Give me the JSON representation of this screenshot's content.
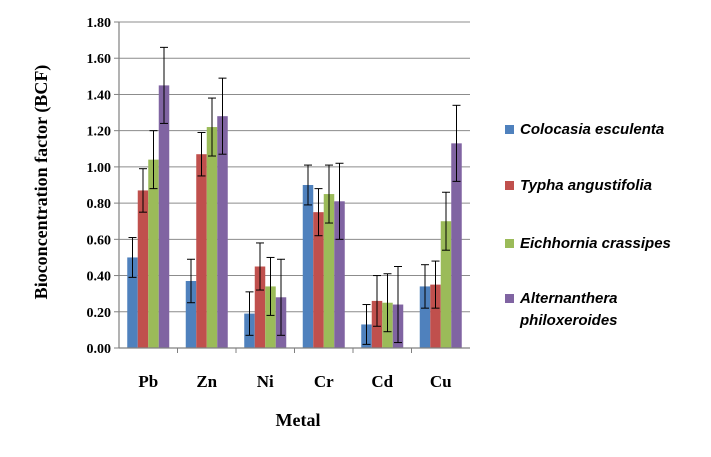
{
  "chart_data": {
    "type": "bar",
    "title": "",
    "xlabel": "Metal",
    "ylabel": "Bioconcentration factor (BCF)",
    "ylim": [
      0,
      1.8
    ],
    "ytick_step": 0.2,
    "yticks": [
      "0.00",
      "0.20",
      "0.40",
      "0.60",
      "0.80",
      "1.00",
      "1.20",
      "1.40",
      "1.60",
      "1.80"
    ],
    "grid": true,
    "legend_position": "right",
    "categories": [
      "Pb",
      "Zn",
      "Ni",
      "Cr",
      "Cd",
      "Cu"
    ],
    "series": [
      {
        "name": "Colocasia esculenta",
        "color": "#4F81BD",
        "values": [
          0.5,
          0.37,
          0.19,
          0.9,
          0.13,
          0.34
        ],
        "errors": [
          0.11,
          0.12,
          0.12,
          0.11,
          0.11,
          0.12
        ]
      },
      {
        "name": "Typha angustifolia",
        "color": "#C0504D",
        "values": [
          0.87,
          1.07,
          0.45,
          0.75,
          0.26,
          0.35
        ],
        "errors": [
          0.12,
          0.12,
          0.13,
          0.13,
          0.14,
          0.13
        ]
      },
      {
        "name": "Eichhornia crassipes",
        "color": "#9BBB59",
        "values": [
          1.04,
          1.22,
          0.34,
          0.85,
          0.25,
          0.7
        ],
        "errors": [
          0.16,
          0.16,
          0.16,
          0.16,
          0.16,
          0.16
        ]
      },
      {
        "name": "Alternanthera philoxeroides",
        "legend_lines": [
          "Alternanthera",
          "philoxeroides"
        ],
        "color": "#8064A2",
        "values": [
          1.45,
          1.28,
          0.28,
          0.81,
          0.24,
          1.13
        ],
        "errors": [
          0.21,
          0.21,
          0.21,
          0.21,
          0.21,
          0.21
        ]
      }
    ]
  }
}
